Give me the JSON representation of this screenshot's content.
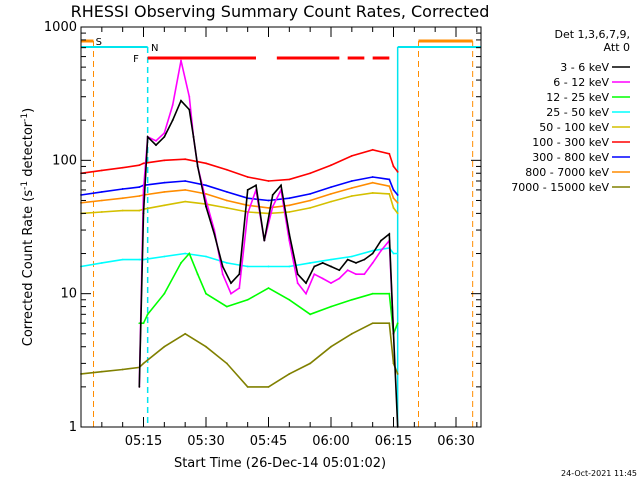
{
  "chart_data": {
    "type": "line",
    "title": "RHESSI Observing Summary Count Rates, Corrected",
    "xlabel": "Start Time (26-Dec-14 05:01:02)",
    "ylabel": "Corrected Count Rate (s⁻¹ detector⁻¹)",
    "ylabel_main": "Corrected Count Rate (s",
    "ylabel_sup1": "-1",
    "ylabel_mid": " detector",
    "ylabel_sup2": "-1",
    "ylabel_end": ")",
    "y_scale": "log",
    "ylim": [
      1,
      1000
    ],
    "xlim": [
      "05:01",
      "06:37"
    ],
    "y_tick_labels": [
      "1",
      "10",
      "100",
      "1000"
    ],
    "x_tick_labels": [
      "05:15",
      "05:30",
      "05:45",
      "06:00",
      "06:15",
      "06:30"
    ],
    "x_ticks_min": [
      15,
      30,
      45,
      60,
      75,
      90
    ],
    "legend": {
      "header1": "Det 1,3,6,7,9,",
      "header2": "Att 0",
      "position": "right"
    },
    "series": [
      {
        "name": "3 - 6 keV",
        "color": "#000000",
        "x": [
          14,
          15,
          16,
          18,
          20,
          22,
          24,
          26,
          27,
          28,
          30,
          32,
          34,
          36,
          38,
          40,
          42,
          44,
          46,
          48,
          50,
          52,
          54,
          56,
          58,
          60,
          62,
          64,
          66,
          68,
          70,
          72,
          74,
          75,
          76
        ],
        "y": [
          2,
          40,
          150,
          130,
          150,
          200,
          280,
          240,
          150,
          90,
          45,
          28,
          16,
          12,
          14,
          60,
          65,
          25,
          55,
          65,
          28,
          14,
          12,
          16,
          17,
          16,
          15,
          18,
          17,
          18,
          20,
          25,
          28,
          5,
          1
        ]
      },
      {
        "name": "6 - 12 keV",
        "color": "#ff00ff",
        "x": [
          14,
          15,
          16,
          18,
          20,
          22,
          24,
          26,
          27,
          28,
          30,
          32,
          34,
          36,
          38,
          40,
          42,
          44,
          46,
          48,
          50,
          52,
          54,
          56,
          58,
          60,
          62,
          64,
          66,
          68,
          70,
          72,
          74,
          75
        ],
        "y": [
          2,
          60,
          150,
          140,
          160,
          260,
          560,
          300,
          150,
          90,
          50,
          30,
          14,
          10,
          11,
          40,
          60,
          25,
          45,
          60,
          25,
          12,
          10,
          14,
          13,
          12,
          13,
          15,
          14,
          14,
          17,
          21,
          25,
          5
        ]
      },
      {
        "name": "12 - 25 keV",
        "color": "#00ff00",
        "x": [
          14,
          15,
          16,
          20,
          24,
          26,
          28,
          30,
          35,
          40,
          45,
          50,
          55,
          60,
          65,
          70,
          74,
          75,
          76
        ],
        "y": [
          6,
          6,
          7,
          10,
          17,
          20,
          14,
          10,
          8,
          9,
          11,
          9,
          7,
          8,
          9,
          10,
          10,
          5,
          6
        ]
      },
      {
        "name": "25 - 50 keV",
        "color": "#00ffff",
        "x": [
          0,
          5,
          10,
          14,
          15,
          20,
          25,
          30,
          35,
          40,
          45,
          50,
          55,
          60,
          65,
          70,
          74,
          75,
          76
        ],
        "y": [
          16,
          17,
          18,
          18,
          18,
          19,
          20,
          19,
          17,
          16,
          16,
          16,
          17,
          18,
          19,
          21,
          22,
          20,
          20
        ]
      },
      {
        "name": "50 - 100 keV",
        "color": "#d4c000",
        "x": [
          0,
          5,
          10,
          14,
          15,
          20,
          25,
          30,
          35,
          40,
          45,
          50,
          55,
          60,
          65,
          70,
          74,
          75,
          76
        ],
        "y": [
          40,
          41,
          42,
          42,
          43,
          46,
          49,
          47,
          44,
          41,
          40,
          41,
          44,
          49,
          54,
          57,
          56,
          44,
          40
        ]
      },
      {
        "name": "100 - 300 keV",
        "color": "#ff0000",
        "x": [
          0,
          5,
          10,
          14,
          15,
          20,
          25,
          30,
          35,
          40,
          45,
          50,
          55,
          60,
          65,
          70,
          74,
          75,
          76
        ],
        "y": [
          80,
          84,
          88,
          92,
          95,
          100,
          102,
          95,
          85,
          75,
          70,
          72,
          80,
          92,
          108,
          120,
          112,
          90,
          82
        ]
      },
      {
        "name": "300 - 800 keV",
        "color": "#0000ff",
        "x": [
          0,
          5,
          10,
          14,
          15,
          20,
          25,
          30,
          35,
          40,
          45,
          50,
          55,
          60,
          65,
          70,
          74,
          75,
          76
        ],
        "y": [
          55,
          58,
          61,
          63,
          65,
          68,
          70,
          65,
          58,
          52,
          50,
          52,
          56,
          63,
          70,
          75,
          72,
          60,
          55
        ]
      },
      {
        "name": "800 - 7000 keV",
        "color": "#ff8c00",
        "x": [
          0,
          5,
          10,
          14,
          15,
          20,
          25,
          30,
          35,
          40,
          45,
          50,
          55,
          60,
          65,
          70,
          74,
          75,
          76
        ],
        "y": [
          48,
          50,
          52,
          54,
          55,
          58,
          60,
          56,
          50,
          46,
          44,
          46,
          50,
          56,
          62,
          68,
          64,
          52,
          48
        ]
      },
      {
        "name": "7000 - 15000 keV",
        "color": "#808000",
        "x": [
          0,
          5,
          10,
          14,
          15,
          20,
          25,
          30,
          35,
          40,
          45,
          50,
          55,
          60,
          65,
          70,
          74,
          75,
          76
        ],
        "y": [
          2.5,
          2.6,
          2.7,
          2.8,
          3,
          4,
          5,
          4,
          3,
          2,
          2,
          2.5,
          3,
          4,
          5,
          6,
          6,
          3,
          2.5
        ]
      }
    ],
    "flags": {
      "saa": {
        "label": "S",
        "color": "#ff8c00",
        "x_ranges_min": [
          [
            0,
            3
          ],
          [
            81,
            94
          ]
        ]
      },
      "night": {
        "label": "N",
        "color": "#00e5ee",
        "x_ranges_min": [
          [
            0,
            16
          ],
          [
            76,
            96
          ]
        ]
      },
      "flare": {
        "label": "F",
        "color": "#ff0000",
        "x_ranges_min": [
          [
            16,
            42
          ],
          [
            47,
            62
          ],
          [
            64,
            68
          ],
          [
            70,
            74
          ]
        ]
      }
    }
  },
  "footer": {
    "timestamp": "24-Oct-2021 11:45"
  }
}
